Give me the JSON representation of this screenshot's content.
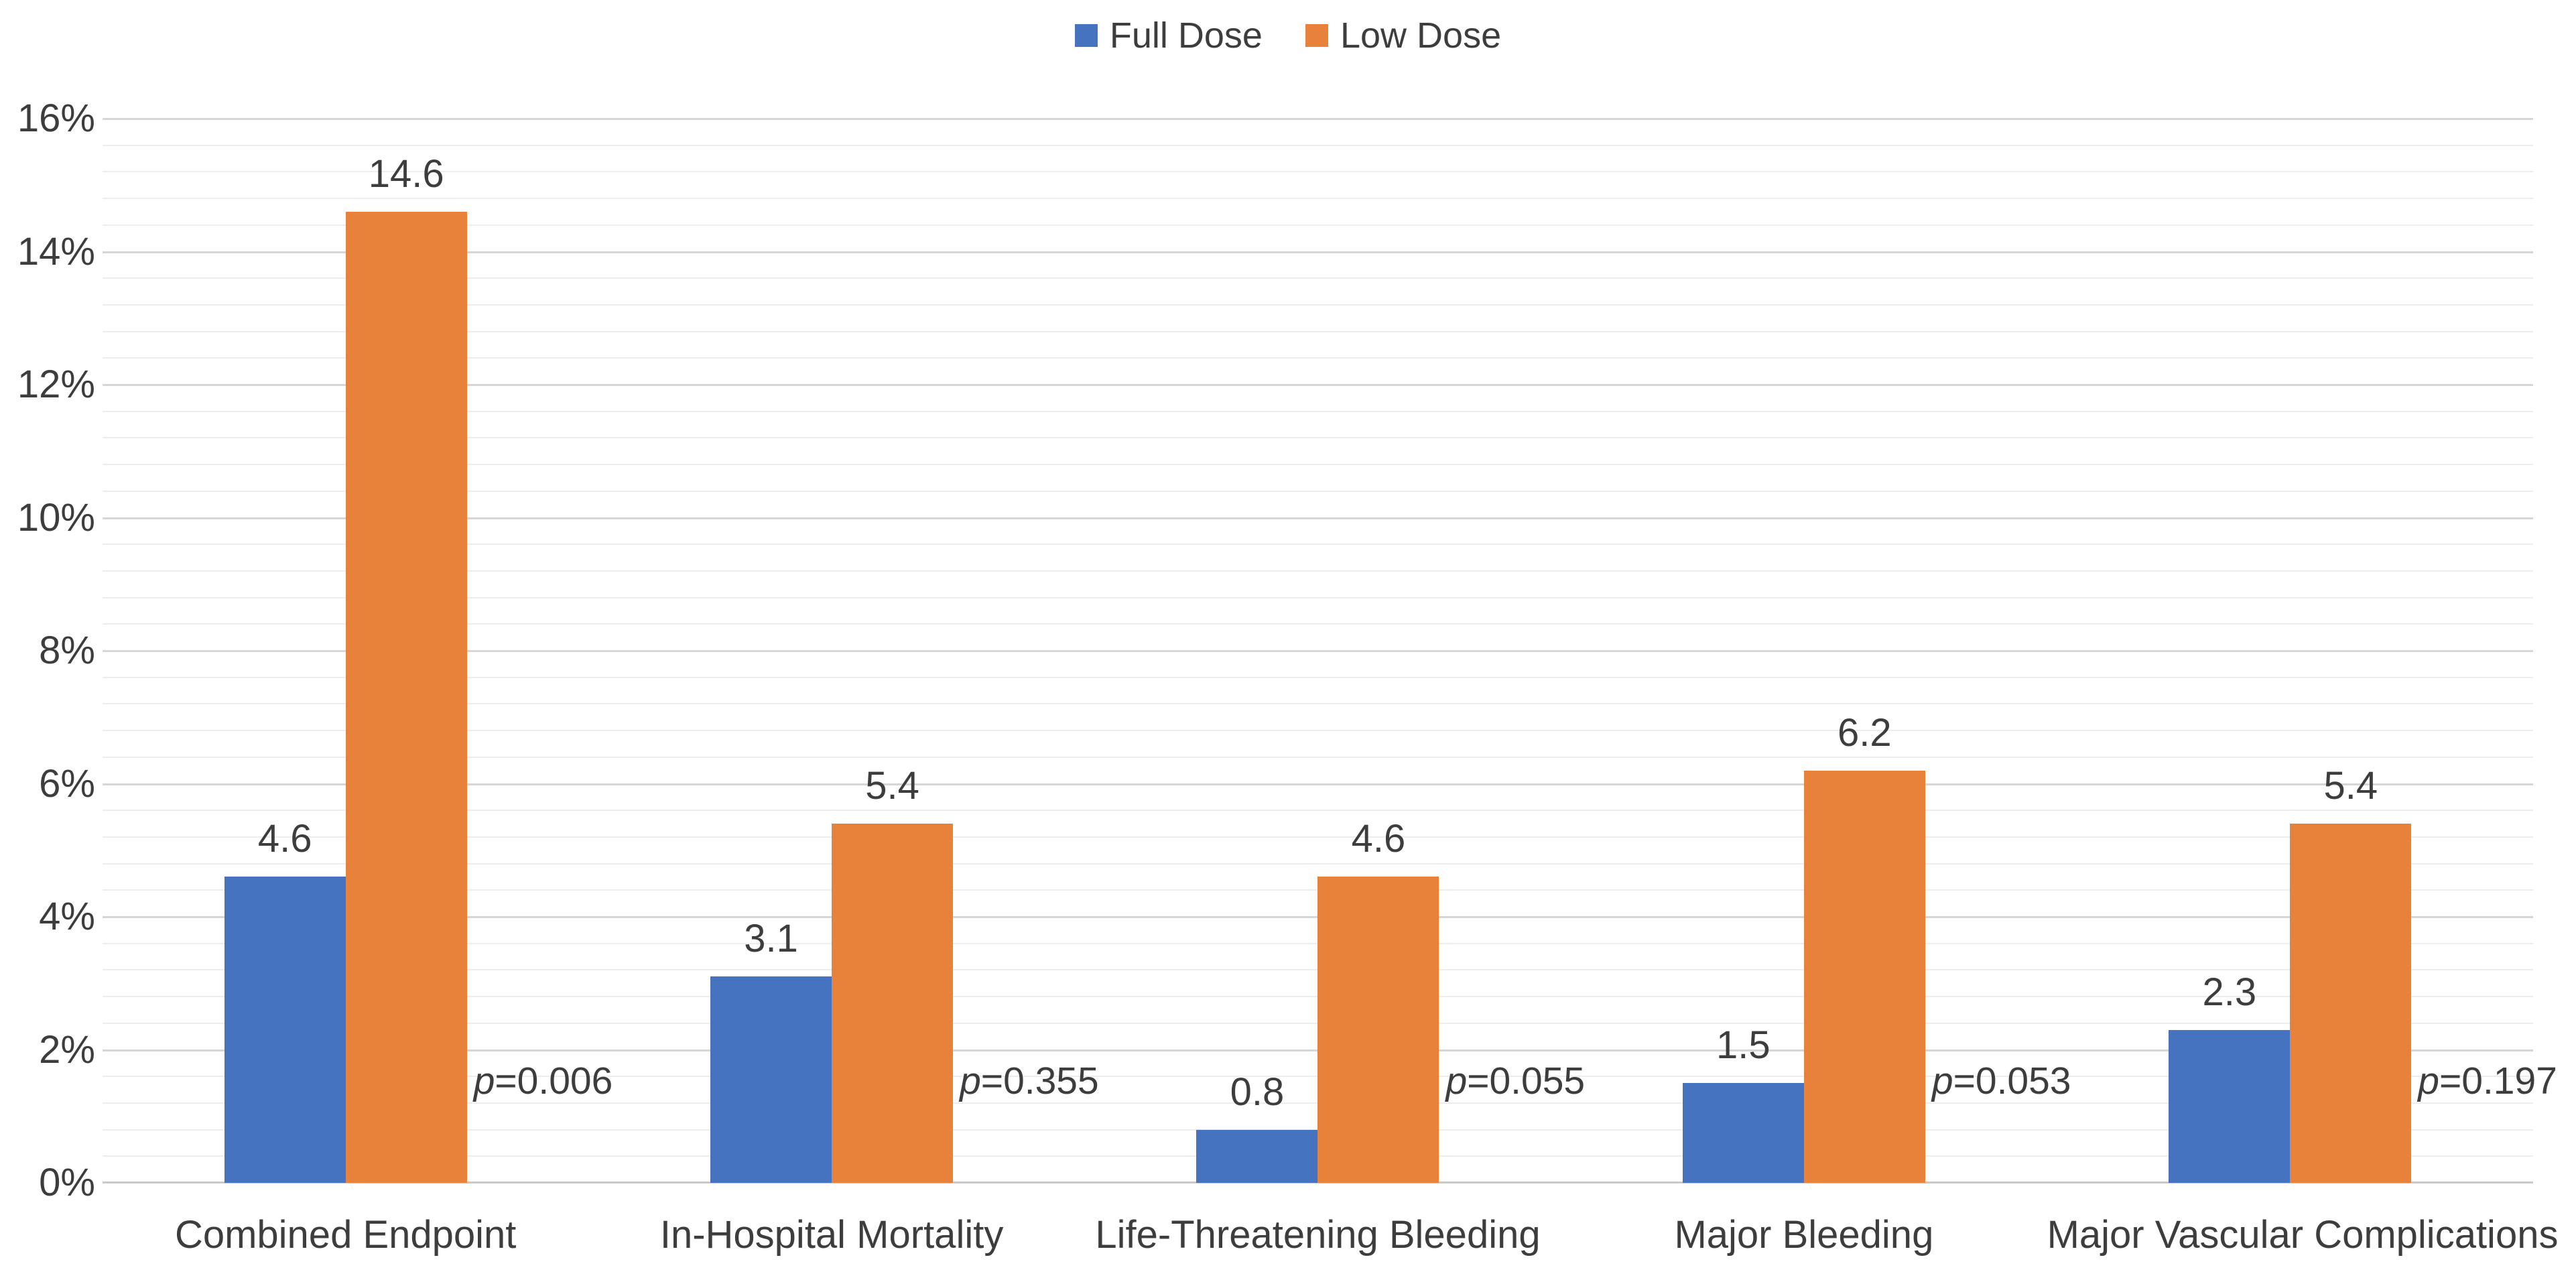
{
  "legend": {
    "items": [
      {
        "label": "Full Dose",
        "color": "#4673BF"
      },
      {
        "label": "Low Dose",
        "color": "#E8813A"
      }
    ]
  },
  "chart_data": {
    "type": "bar",
    "title": "",
    "categories": [
      "Combined Endpoint",
      "In-Hospital Mortality",
      "Life-Threatening Bleeding",
      "Major Bleeding",
      "Major Vascular Complications"
    ],
    "series": [
      {
        "name": "Full Dose",
        "color": "#4673BF",
        "values": [
          4.6,
          3.1,
          0.8,
          1.5,
          2.3
        ],
        "value_labels": [
          "4.6",
          "3.1",
          "0.8",
          "1.5",
          "2.3"
        ]
      },
      {
        "name": "Low Dose",
        "color": "#E8813A",
        "values": [
          14.6,
          5.4,
          4.6,
          6.2,
          5.4
        ],
        "value_labels": [
          "14.6",
          "5.4",
          "4.6",
          "6.2",
          "5.4"
        ]
      }
    ],
    "p_value_labels": [
      "p=0.006",
      "p=0.355",
      "p=0.055",
      "p=0.053",
      "p=0.197"
    ],
    "y_axis": {
      "min": 0,
      "max": 16,
      "major_step": 2,
      "minor_step": 0.4,
      "tick_labels": [
        "0%",
        "2%",
        "4%",
        "6%",
        "8%",
        "10%",
        "12%",
        "14%",
        "16%"
      ]
    },
    "xlabel": "",
    "ylabel": "",
    "grid": true,
    "legend_position": "top"
  },
  "colors": {
    "full_dose": "#4673BF",
    "low_dose": "#E8813A",
    "major_gridline": "#d6d6d6",
    "minor_gridline": "#ededed",
    "axis_line": "#c9c9c9",
    "text": "#3d3d3d"
  }
}
